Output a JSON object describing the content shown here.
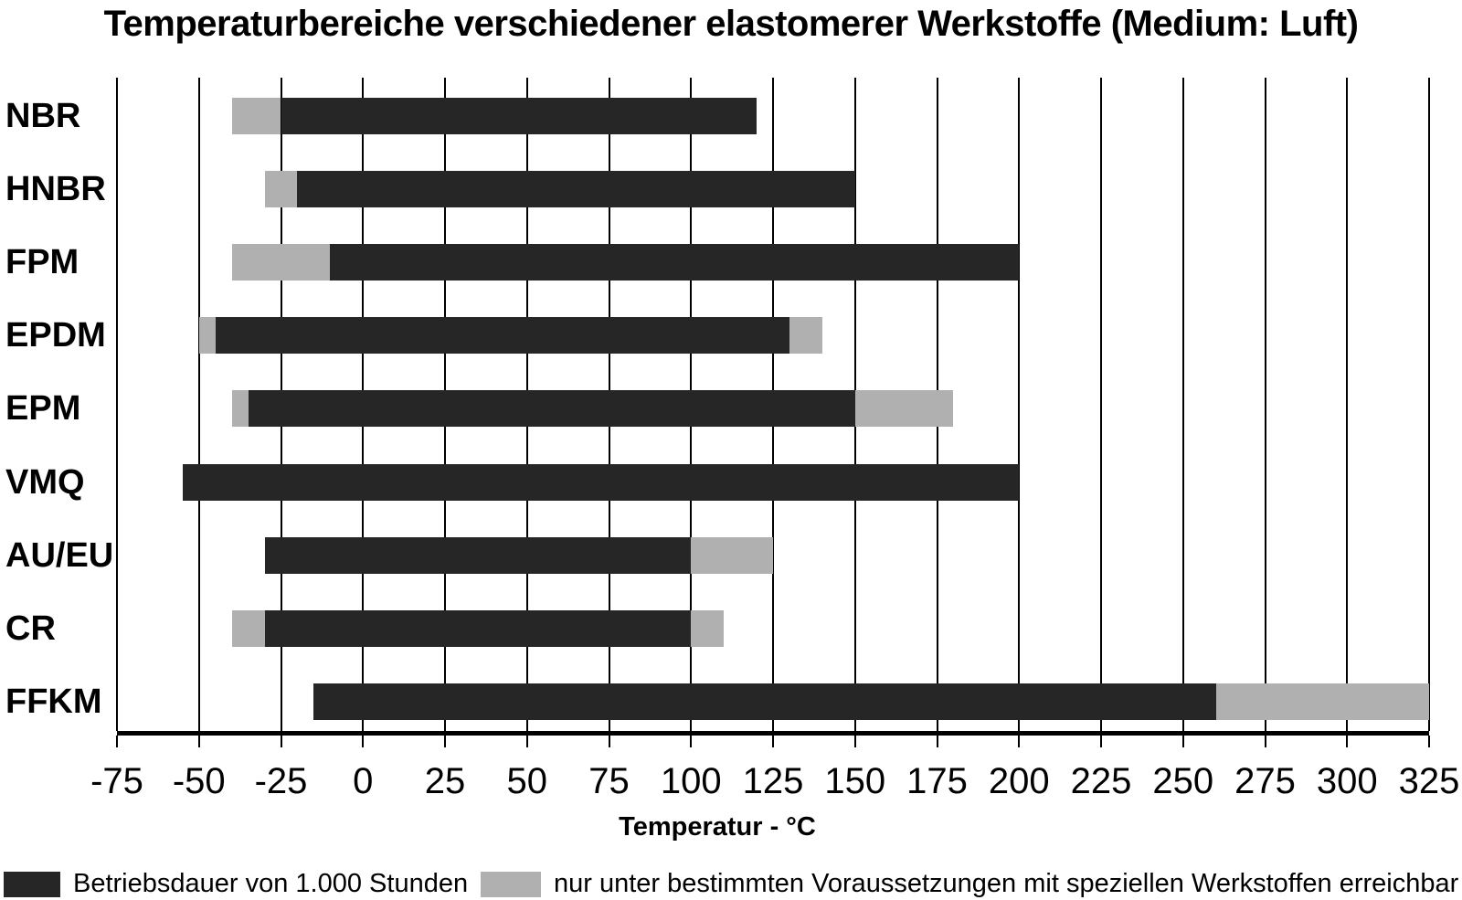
{
  "title": "Temperaturbereiche verschiedener elastomerer Werkstoffe (Medium: Luft)",
  "chart_data": {
    "type": "bar",
    "subtype": "horizontal-range-bars",
    "title": "Temperaturbereiche verschiedener elastomerer Werkstoffe (Medium: Luft)",
    "xlabel": "Temperatur - °C",
    "ylabel": "",
    "xlim": [
      -75,
      325
    ],
    "xticks": [
      -75,
      -50,
      -25,
      0,
      25,
      50,
      75,
      100,
      125,
      150,
      175,
      200,
      225,
      250,
      275,
      300,
      325
    ],
    "grid": "vertical-on",
    "categories": [
      "NBR",
      "HNBR",
      "FPM",
      "EPDM",
      "EPM",
      "VMQ",
      "AU/EU",
      "CR",
      "FFKM"
    ],
    "rows": [
      {
        "label": "NBR",
        "segments": [
          {
            "type": "special",
            "from": -40,
            "to": -25
          },
          {
            "type": "standard",
            "from": -25,
            "to": 120
          }
        ]
      },
      {
        "label": "HNBR",
        "segments": [
          {
            "type": "special",
            "from": -30,
            "to": -20
          },
          {
            "type": "standard",
            "from": -20,
            "to": 150
          }
        ]
      },
      {
        "label": "FPM",
        "segments": [
          {
            "type": "special",
            "from": -40,
            "to": -10
          },
          {
            "type": "standard",
            "from": -10,
            "to": 200
          }
        ]
      },
      {
        "label": "EPDM",
        "segments": [
          {
            "type": "special",
            "from": -50,
            "to": -45
          },
          {
            "type": "standard",
            "from": -45,
            "to": 130
          },
          {
            "type": "special",
            "from": 130,
            "to": 140
          }
        ]
      },
      {
        "label": "EPM",
        "segments": [
          {
            "type": "special",
            "from": -40,
            "to": -35
          },
          {
            "type": "standard",
            "from": -35,
            "to": 150
          },
          {
            "type": "special",
            "from": 150,
            "to": 180
          }
        ]
      },
      {
        "label": "VMQ",
        "segments": [
          {
            "type": "standard",
            "from": -55,
            "to": 200
          }
        ]
      },
      {
        "label": "AU/EU",
        "segments": [
          {
            "type": "standard",
            "from": -30,
            "to": 100
          },
          {
            "type": "special",
            "from": 100,
            "to": 125
          }
        ]
      },
      {
        "label": "CR",
        "segments": [
          {
            "type": "special",
            "from": -40,
            "to": -30
          },
          {
            "type": "standard",
            "from": -30,
            "to": 100
          },
          {
            "type": "special",
            "from": 100,
            "to": 110
          }
        ]
      },
      {
        "label": "FFKM",
        "segments": [
          {
            "type": "standard",
            "from": -15,
            "to": 260
          },
          {
            "type": "special",
            "from": 260,
            "to": 325
          }
        ]
      }
    ],
    "colors": {
      "standard": "#262626",
      "special": "#b0b0b0",
      "grid": "#000000"
    },
    "legend": {
      "position": "bottom",
      "items": [
        {
          "color_key": "standard",
          "label": "Betriebsdauer von 1.000 Stunden"
        },
        {
          "color_key": "special",
          "label": "nur unter bestimmten Voraussetzungen mit speziellen Werkstoffen erreichbar"
        }
      ]
    }
  }
}
